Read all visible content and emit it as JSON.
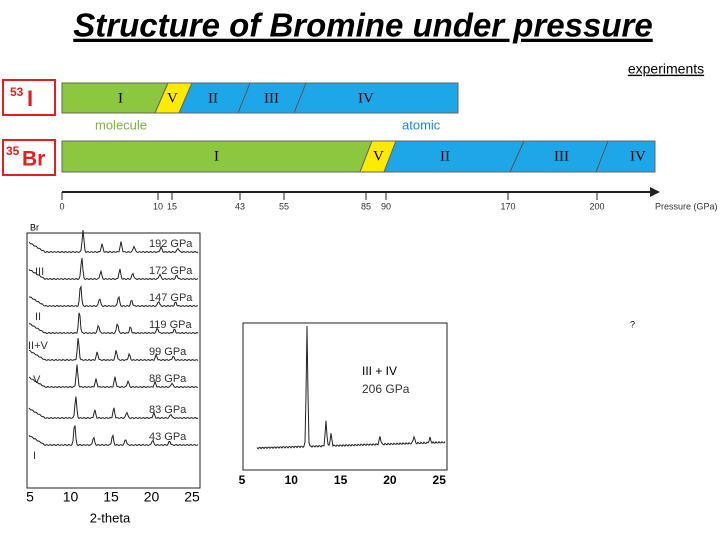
{
  "title": "Structure of Bromine under pressure",
  "link": "experiments",
  "iodine": {
    "mass": "53",
    "element": "I",
    "phases": [
      "I",
      "V",
      "II",
      "III",
      "IV"
    ],
    "notes": [
      "molecule",
      "atomic"
    ]
  },
  "bromine": {
    "mass": "35",
    "element": "Br",
    "phases": [
      "I",
      "V",
      "II",
      "III",
      "IV"
    ]
  },
  "pressure_axis": {
    "ticks": [
      "0",
      "10",
      "15",
      "43",
      "55",
      "85",
      "90",
      "170",
      "200"
    ],
    "label": "Pressure (GPa)"
  },
  "left_panel": {
    "sample": "Br",
    "phases": [
      "III",
      "II",
      "II+V",
      "V",
      "I"
    ],
    "pressures": [
      "192 GPa",
      "172 GPa",
      "147 GPa",
      "119 GPa",
      "99 GPa",
      "88 GPa",
      "83 GPa",
      "43 GPa"
    ],
    "xticks": [
      "5",
      "10",
      "15",
      "20",
      "25"
    ],
    "xlabel": "2-theta"
  },
  "right_panel": {
    "phase": "III + IV",
    "pressure": "206 GPa",
    "xticks": [
      "5",
      "10",
      "15",
      "20",
      "25"
    ]
  },
  "question": "?"
}
